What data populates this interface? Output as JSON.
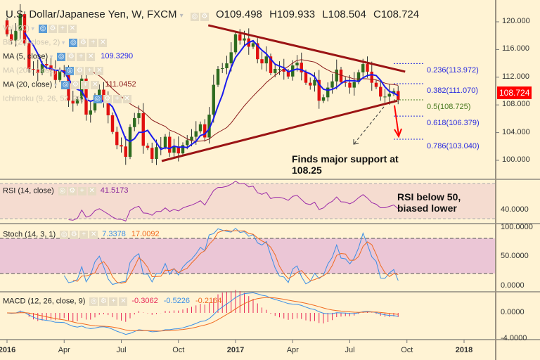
{
  "header": {
    "title": "U.S. Dollar/Japanese Yen, W, FXCM",
    "open": "O109.498",
    "high": "H109.933",
    "low": "L108.504",
    "close": "C108.724"
  },
  "legend": [
    {
      "label": "Vol (20)",
      "value": "",
      "faded": true
    },
    {
      "label": "BB (20, close, 2)",
      "value": "",
      "faded": true
    },
    {
      "label": "MA (5, close)",
      "value": "109.3290",
      "faded": false,
      "color": "#2222ee"
    },
    {
      "label": "MA (200, close)",
      "value": "",
      "faded": true
    },
    {
      "label": "MA (20, close)",
      "value": "111.0452",
      "faded": false,
      "color": "#8b1a1a"
    },
    {
      "label": "Ichimoku (9, 26, 52, 26)",
      "value": "",
      "faded": true
    }
  ],
  "price_axis": [
    "120.000",
    "116.000",
    "112.000",
    "108.000",
    "104.000",
    "100.000"
  ],
  "last_price": "108.724",
  "fib_levels": [
    {
      "label": "0.236(113.972)",
      "price": 113.972,
      "color": "#2a2ae0"
    },
    {
      "label": "0.382(111.070)",
      "price": 111.07,
      "color": "#2a2ae0"
    },
    {
      "label": "0.5(108.725)",
      "price": 108.725,
      "color": "#4a7a20"
    },
    {
      "label": "0.618(106.379)",
      "price": 106.379,
      "color": "#2a2ae0"
    },
    {
      "label": "0.786(103.040)",
      "price": 103.04,
      "color": "#2a2ae0"
    }
  ],
  "annotations": {
    "support": "Finds major support at 108.25",
    "rsi": "RSI below 50, biased lower"
  },
  "rsi": {
    "label": "RSI (14, close)",
    "value": "41.5173",
    "axis": "40.0000"
  },
  "stoch": {
    "label": "Stoch (14, 3, 1)",
    "k": "7.3378",
    "d": "17.0092",
    "axis": [
      "100.0000",
      "50.0000",
      "0.0000"
    ]
  },
  "macd": {
    "label": "MACD (12, 26, close, 9)",
    "hist": "-0.3062",
    "macd": "-0.5226",
    "signal": "-0.2164",
    "axis": [
      "0.0000",
      "-4.0000"
    ]
  },
  "time_axis": [
    {
      "label": "2016",
      "week": 0,
      "bold": true
    },
    {
      "label": "Apr",
      "week": 13
    },
    {
      "label": "Jul",
      "week": 26
    },
    {
      "label": "Oct",
      "week": 39
    },
    {
      "label": "2017",
      "week": 52,
      "bold": true
    },
    {
      "label": "Apr",
      "week": 65
    },
    {
      "label": "Jul",
      "week": 78
    },
    {
      "label": "Oct",
      "week": 91
    },
    {
      "label": "2018",
      "week": 104,
      "bold": true
    }
  ],
  "chart_data": {
    "type": "candlestick",
    "title": "U.S. Dollar/Japanese Yen, W, FXCM",
    "x_unit": "week index from first week of Jan 2016",
    "ylim": [
      97,
      122
    ],
    "first_open": 120.2,
    "closes": [
      118.2,
      117.3,
      118.7,
      121.1,
      116.9,
      113.2,
      113.1,
      112.6,
      113.9,
      113.7,
      113.0,
      111.6,
      113.0,
      112.6,
      108.6,
      108.2,
      108.8,
      111.8,
      106.6,
      107.2,
      109.3,
      110.2,
      108.5,
      106.5,
      104.1,
      102.2,
      102.0,
      100.5,
      104.8,
      106.1,
      106.8,
      102.1,
      101.8,
      100.2,
      101.9,
      101.9,
      103.4,
      101.1,
      102.0,
      101.0,
      102.2,
      102.9,
      103.4,
      104.2,
      105.2,
      103.3,
      106.6,
      110.9,
      113.2,
      113.3,
      114.0,
      115.6,
      118.2,
      117.3,
      117.6,
      116.4,
      116.9,
      114.6,
      114.0,
      115.0,
      112.6,
      113.2,
      113.2,
      112.8,
      112.1,
      113.7,
      114.1,
      112.7,
      111.2,
      110.8,
      111.6,
      108.6,
      109.1,
      110.5,
      111.4,
      113.1,
      111.3,
      111.2,
      110.5,
      111.3,
      112.7,
      113.9,
      112.8,
      111.2,
      110.6,
      109.2,
      109.2,
      109.6,
      110.0,
      108.7
    ],
    "trendlines": [
      {
        "name": "upper",
        "from": [
          45.8,
          119.5
        ],
        "to": [
          90.6,
          112.8
        ]
      },
      {
        "name": "lower",
        "from": [
          35.2,
          99.9
        ],
        "to": [
          88.8,
          108.6
        ]
      }
    ]
  }
}
